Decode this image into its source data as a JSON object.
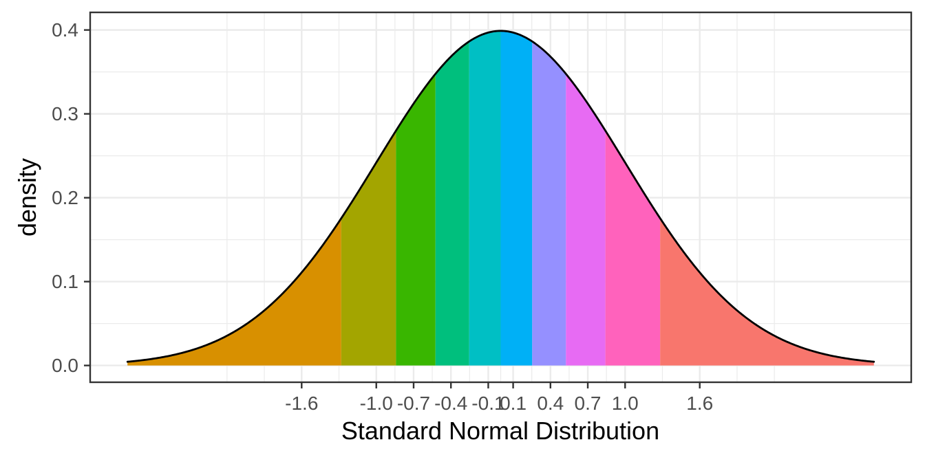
{
  "chart_data": {
    "type": "area",
    "title": "",
    "xlabel": "Standard Normal Distribution",
    "ylabel": "density",
    "legend": false,
    "grid": true,
    "xlim": [
      -3.3,
      3.3
    ],
    "ylim": [
      -0.02,
      0.421
    ],
    "distribution": {
      "name": "standard normal",
      "mean": 0,
      "sd": 1,
      "x_min": -3,
      "x_max": 3,
      "peak_density": 0.3989
    },
    "x_ticks": {
      "values": [
        -1.6,
        -1.0,
        -0.7,
        -0.4,
        -0.1,
        0.1,
        0.4,
        0.7,
        1.0,
        1.6
      ],
      "labels": [
        "-1.6",
        "-1.0",
        "-0.7",
        "-0.4",
        "-0.1",
        "0.1",
        "0.4",
        "0.7",
        "1.0",
        "1.6"
      ]
    },
    "y_ticks": {
      "values": [
        0.0,
        0.1,
        0.2,
        0.3,
        0.4
      ],
      "labels": [
        "0.0",
        "0.1",
        "0.2",
        "0.3",
        "0.4"
      ]
    },
    "x_minor_gridlines": [
      -2.2,
      -1.9,
      -1.3,
      -0.85,
      -0.55,
      -0.25,
      0,
      0.25,
      0.55,
      0.85,
      1.3,
      1.9,
      2.2
    ],
    "y_minor_gridlines": [
      0.05,
      0.15,
      0.25,
      0.35
    ],
    "bands": [
      {
        "band": 1,
        "from": -3.0,
        "to": -1.2816,
        "color": "#D89000"
      },
      {
        "band": 2,
        "from": -1.2816,
        "to": -0.8416,
        "color": "#A3A500"
      },
      {
        "band": 3,
        "from": -0.8416,
        "to": -0.5244,
        "color": "#39B600"
      },
      {
        "band": 4,
        "from": -0.5244,
        "to": -0.2533,
        "color": "#00BF7D"
      },
      {
        "band": 5,
        "from": -0.2533,
        "to": 0.0,
        "color": "#00BFC4"
      },
      {
        "band": 6,
        "from": 0.0,
        "to": 0.2533,
        "color": "#00B0F6"
      },
      {
        "band": 7,
        "from": 0.2533,
        "to": 0.5244,
        "color": "#9590FF"
      },
      {
        "band": 8,
        "from": 0.5244,
        "to": 0.8416,
        "color": "#E76BF3"
      },
      {
        "band": 9,
        "from": 0.8416,
        "to": 1.2816,
        "color": "#FF62BC"
      },
      {
        "band": 10,
        "from": 1.2816,
        "to": 3.0,
        "color": "#F8766D"
      }
    ],
    "curve_color": "#000000"
  },
  "style": {
    "background_color": "#FFFFFF",
    "panel_background_color": "#FFFFFF",
    "grid_color": "#EBEBEB",
    "panel_border_color": "#333333",
    "tick_mark_color": "#333333",
    "tick_label_color": "#4D4D4D",
    "axis_title_color": "#000000"
  }
}
